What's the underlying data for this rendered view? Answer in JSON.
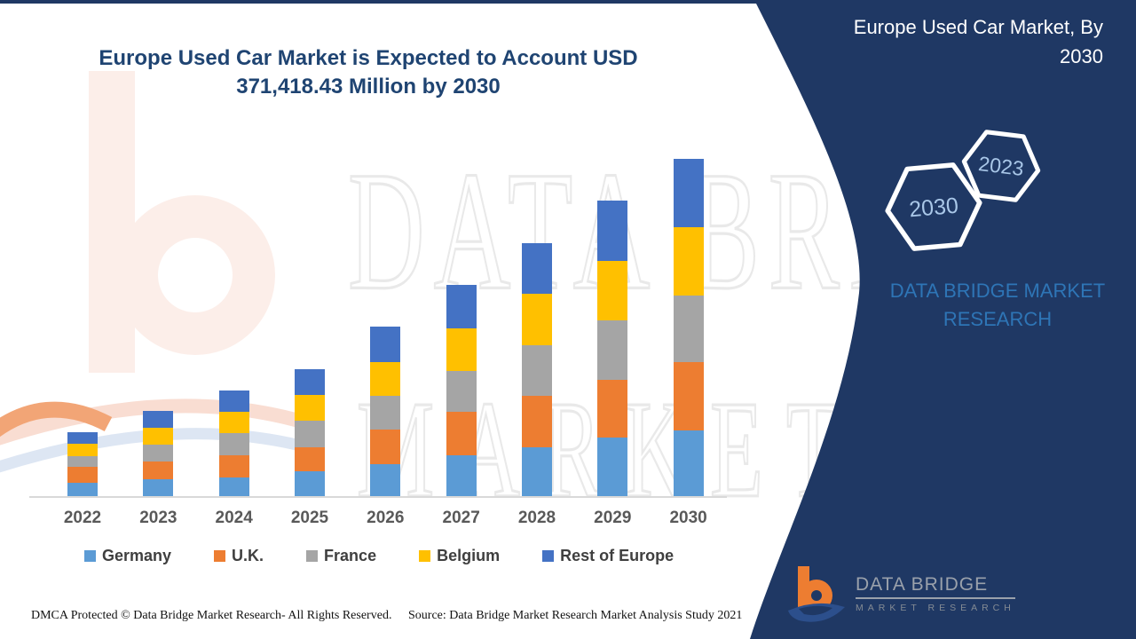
{
  "page": {
    "title_line1": "Europe Used Car Market is Expected to Account USD",
    "title_line2": "371,418.43 Million by 2030",
    "accent_navy": "#1f3864"
  },
  "watermark": {
    "line1": "DATA BRIDGE",
    "line2": "MARKET RESEARCH"
  },
  "chart_data": {
    "type": "bar",
    "subtype": "stacked",
    "unit": "USD Million",
    "title": "Europe Used Car Market is Expected to Account USD 371,418.43 Million by 2030",
    "xlabel": "",
    "ylabel": "",
    "axis_labels_shown": "x-only",
    "grid": false,
    "legend_position": "bottom",
    "ylim": [
      0,
      380000
    ],
    "stated_total_2030": 371418.43,
    "categories": [
      "2022",
      "2023",
      "2024",
      "2025",
      "2026",
      "2027",
      "2028",
      "2029",
      "2030"
    ],
    "series": [
      {
        "name": "Germany",
        "color": "#5b9bd5",
        "values": [
          14700,
          18600,
          20500,
          27400,
          35200,
          45000,
          53800,
          64500,
          72300
        ]
      },
      {
        "name": "U.K.",
        "color": "#ed7d31",
        "values": [
          17600,
          19500,
          24400,
          26400,
          38100,
          47900,
          56700,
          63500,
          75300
        ]
      },
      {
        "name": "France",
        "color": "#a5a5a5",
        "values": [
          11700,
          18600,
          24400,
          29300,
          37100,
          45000,
          55700,
          65500,
          73300
        ]
      },
      {
        "name": "Belgium",
        "color": "#ffc000",
        "values": [
          13700,
          18600,
          23500,
          28300,
          37100,
          46900,
          56700,
          65500,
          75300
        ]
      },
      {
        "name": "Rest of Europe",
        "color": "#4472c4",
        "values": [
          12700,
          18600,
          23500,
          28300,
          39100,
          47900,
          55700,
          66500,
          75218.43
        ]
      }
    ],
    "estimated_totals": [
      70400,
      93900,
      116300,
      139700,
      186600,
      232700,
      278600,
      325500,
      371418.43
    ],
    "note": "Segment values estimated from bar pixel heights; 2030 total anchored to stated 371,418.43"
  },
  "right_panel": {
    "heading": "Europe Used Car Market, By 2030",
    "hexagon_back_label": "2030",
    "hexagon_front_label": "2023",
    "brand_caption": "DATA BRIDGE MARKET RESEARCH",
    "logo_text_primary": "DATA BRIDGE",
    "logo_text_secondary": "MARKET RESEARCH"
  },
  "footer": {
    "dmca": "DMCA Protected © Data Bridge Market Research- All Rights Reserved.",
    "source": "Source: Data Bridge Market Research Market Analysis Study 2021"
  }
}
